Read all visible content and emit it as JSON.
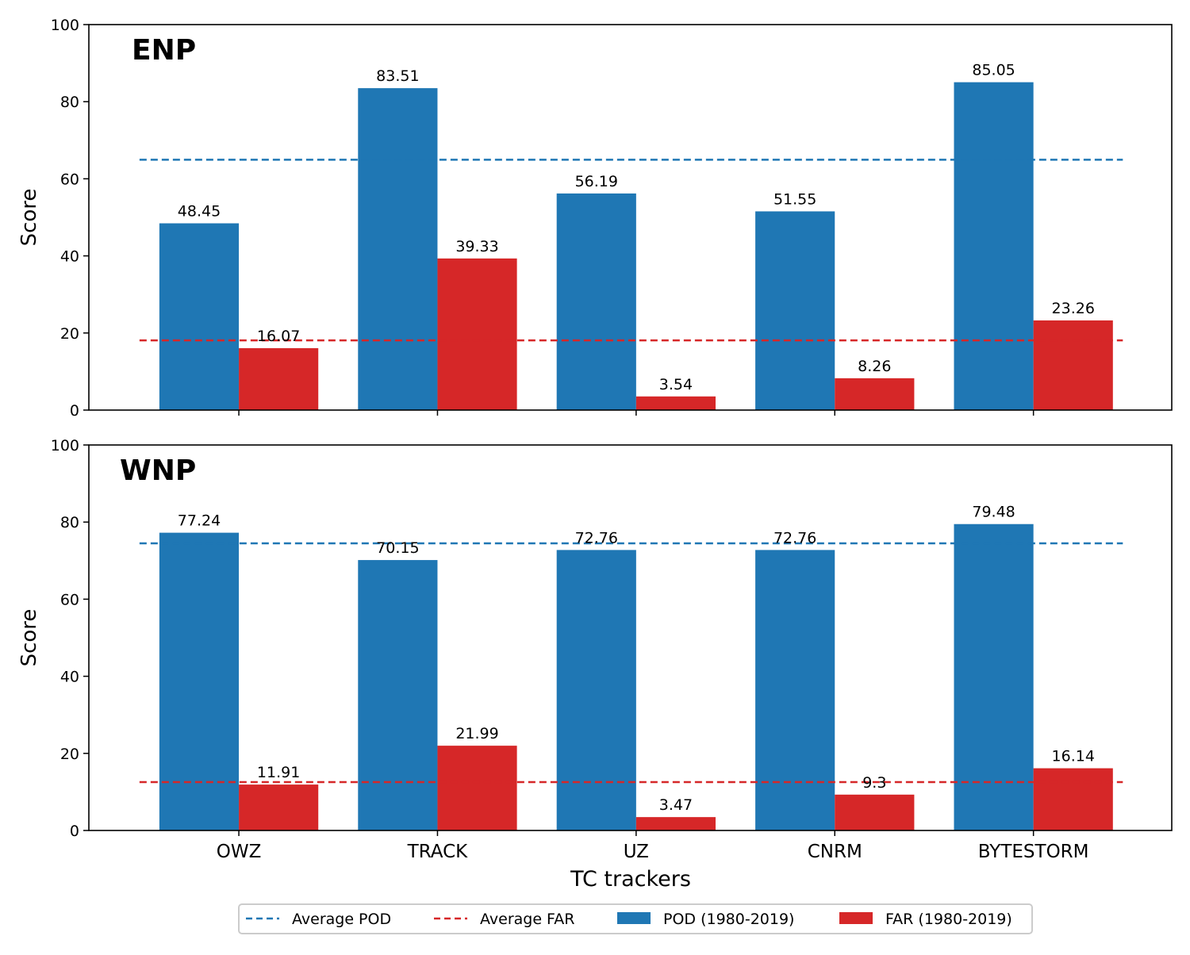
{
  "chart_data": {
    "type": "bar",
    "categories": [
      "OWZ",
      "TRACK",
      "UZ",
      "CNRM",
      "BYTESTORM"
    ],
    "xlabel": "TC trackers",
    "ylabel": "Score",
    "ylim": [
      0,
      100
    ],
    "yticks": [
      0,
      20,
      40,
      60,
      80,
      100
    ],
    "grid": false,
    "legend": {
      "placement": "bottom-center",
      "entries": [
        "Average POD",
        "Average FAR",
        "POD (1980-2019)",
        "FAR (1980-2019)"
      ]
    },
    "colors": {
      "POD": "#1f77b4",
      "FAR": "#d62728"
    },
    "panels": [
      {
        "title": "ENP",
        "series": [
          {
            "name": "POD (1980-2019)",
            "values": [
              48.45,
              83.51,
              56.19,
              51.55,
              85.05
            ]
          },
          {
            "name": "FAR (1980-2019)",
            "values": [
              16.07,
              39.33,
              3.54,
              8.26,
              23.26
            ]
          }
        ],
        "averages": {
          "Average POD": 64.95,
          "Average FAR": 18.09
        }
      },
      {
        "title": "WNP",
        "series": [
          {
            "name": "POD (1980-2019)",
            "values": [
              77.24,
              70.15,
              72.76,
              72.76,
              79.48
            ]
          },
          {
            "name": "FAR (1980-2019)",
            "values": [
              11.91,
              21.99,
              3.47,
              9.3,
              16.14
            ]
          }
        ],
        "averages": {
          "Average POD": 74.48,
          "Average FAR": 12.56
        }
      }
    ]
  }
}
